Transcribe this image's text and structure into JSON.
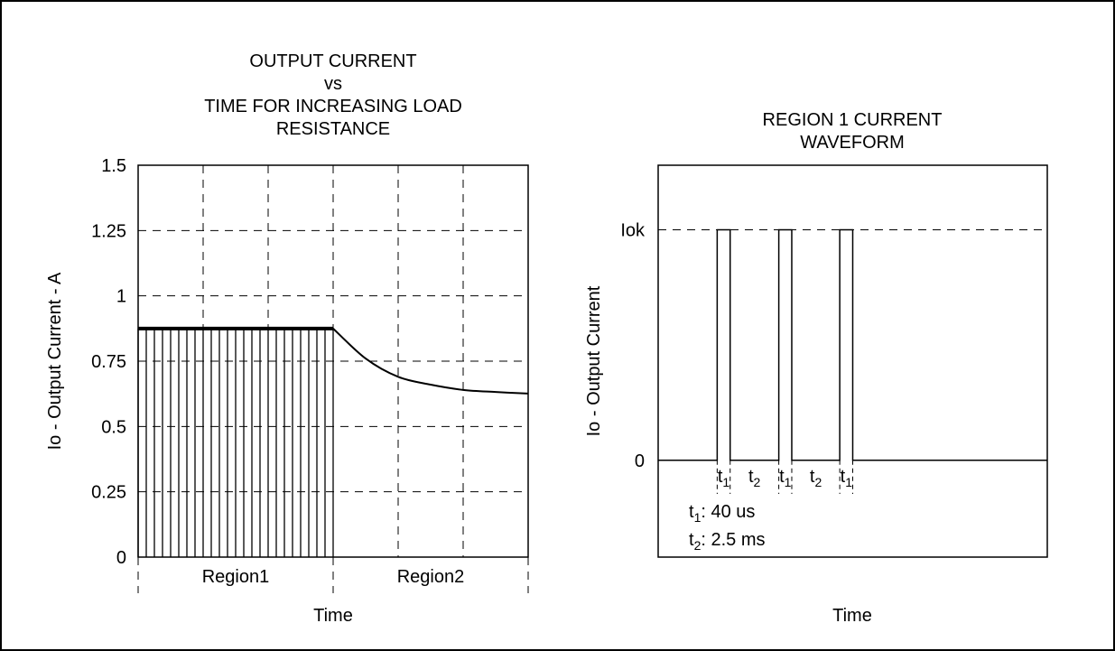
{
  "chart_data": [
    {
      "type": "line",
      "title_lines": [
        "OUTPUT CURRENT",
        "vs",
        "TIME FOR INCREASING LOAD",
        "RESISTANCE"
      ],
      "xlabel": "Time",
      "ylabel": "Io - Output Current - A",
      "ylim": [
        0,
        1.5
      ],
      "y_ticks": [
        "0",
        "0.25",
        "0.5",
        "0.75",
        "1",
        "1.25",
        "1.5"
      ],
      "y_tick_values": [
        0,
        0.25,
        0.5,
        0.75,
        1,
        1.25,
        1.5
      ],
      "x_domain": [
        0,
        6
      ],
      "x_grid": [
        1,
        2,
        3,
        4,
        5
      ],
      "regions": [
        {
          "label": "Region1",
          "x_start": 0,
          "x_end": 3
        },
        {
          "label": "Region2",
          "x_start": 3,
          "x_end": 6
        }
      ],
      "grid": true,
      "series": [
        {
          "style": "pulsed",
          "level": 0.875,
          "x_range": [
            0,
            3
          ],
          "pulse_count": 24
        },
        {
          "style": "decay",
          "x": [
            3.0,
            3.5,
            4.0,
            4.5,
            5.0,
            5.5,
            6.0
          ],
          "y": [
            0.875,
            0.76,
            0.69,
            0.66,
            0.64,
            0.632,
            0.626
          ]
        }
      ]
    },
    {
      "type": "line",
      "title_lines": [
        "REGION 1 CURRENT",
        "WAVEFORM"
      ],
      "xlabel": "Time",
      "ylabel": "Io - Output Current",
      "y_ticks": [
        "Iok",
        "0"
      ],
      "y_tick_values": [
        1,
        0
      ],
      "ylim": [
        -0.42,
        1.28
      ],
      "x_domain": [
        0,
        6
      ],
      "grid_y": [
        1
      ],
      "series": [
        {
          "style": "pulse-train",
          "pulses": [
            {
              "start": 0.91,
              "end": 1.11
            },
            {
              "start": 1.86,
              "end": 2.06
            },
            {
              "start": 2.8,
              "end": 3.0
            }
          ],
          "low": 0,
          "high": 1
        }
      ],
      "interval_labels": [
        {
          "base": "t",
          "sub": "1",
          "from": 0.91,
          "to": 1.11
        },
        {
          "base": "t",
          "sub": "2",
          "from": 1.11,
          "to": 1.86
        },
        {
          "base": "t",
          "sub": "1",
          "from": 1.86,
          "to": 2.06
        },
        {
          "base": "t",
          "sub": "2",
          "from": 2.06,
          "to": 2.8
        },
        {
          "base": "t",
          "sub": "1",
          "from": 2.8,
          "to": 3.0
        }
      ],
      "annotations": [
        {
          "base": "t",
          "sub": "1",
          "text": ": 40 us"
        },
        {
          "base": "t",
          "sub": "2",
          "text": ": 2.5 ms"
        }
      ]
    }
  ]
}
